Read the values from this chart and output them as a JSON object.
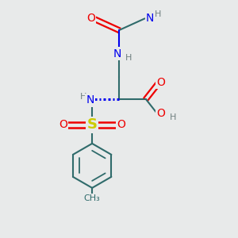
{
  "bg_color": "#e8eaea",
  "atom_colors": {
    "C": "#2f6b6b",
    "N": "#0000ee",
    "O": "#ee0000",
    "S": "#cccc00",
    "H": "#708080"
  },
  "bond_color": "#2f6b6b",
  "figsize": [
    3.0,
    3.0
  ],
  "dpi": 100
}
